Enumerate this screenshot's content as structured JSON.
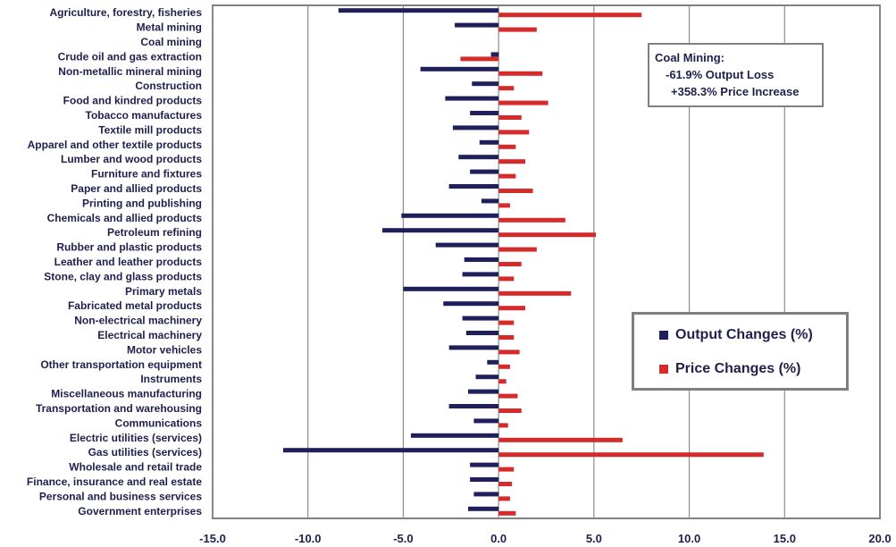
{
  "chart_data": {
    "type": "bar",
    "orientation": "horizontal",
    "categories": [
      "Agriculture, forestry, fisheries",
      "Metal mining",
      "Coal mining",
      "Crude oil and gas extraction",
      "Non-metallic mineral mining",
      "Construction",
      "Food and kindred products",
      "Tobacco manufactures",
      "Textile mill products",
      "Apparel and other textile products",
      "Lumber and wood products",
      "Furniture and fixtures",
      "Paper and allied products",
      "Printing and publishing",
      "Chemicals and allied products",
      "Petroleum refining",
      "Rubber and plastic products",
      "Leather and leather products",
      "Stone, clay and glass products",
      "Primary metals",
      "Fabricated metal products",
      "Non-electrical machinery",
      "Electrical machinery",
      "Motor vehicles",
      "Other transportation equipment",
      "Instruments",
      "Miscellaneous manufacturing",
      "Transportation and warehousing",
      "Communications",
      "Electric utilities (services)",
      "Gas utilities (services)",
      "Wholesale and retail trade",
      "Finance, insurance and real estate",
      "Personal and business services",
      "Government enterprises"
    ],
    "series": [
      {
        "name": "Output Changes (%)",
        "color": "#1f1f5c",
        "values": [
          -8.4,
          -2.3,
          null,
          -0.4,
          -4.1,
          -1.4,
          -2.8,
          -1.5,
          -2.4,
          -1.0,
          -2.1,
          -1.5,
          -2.6,
          -0.9,
          -5.1,
          -6.1,
          -3.3,
          -1.8,
          -1.9,
          -5.0,
          -2.9,
          -1.9,
          -1.7,
          -2.6,
          -0.6,
          -1.2,
          -1.6,
          -2.6,
          -1.3,
          -4.6,
          -11.3,
          -1.5,
          -1.5,
          -1.3,
          -1.6
        ]
      },
      {
        "name": "Price Changes (%)",
        "color": "#d62b2b",
        "values": [
          7.5,
          2.0,
          null,
          -2.0,
          2.3,
          0.8,
          2.6,
          1.2,
          1.6,
          0.9,
          1.4,
          0.9,
          1.8,
          0.6,
          3.5,
          5.1,
          2.0,
          1.2,
          0.8,
          3.8,
          1.4,
          0.8,
          0.8,
          1.1,
          0.6,
          0.4,
          1.0,
          1.2,
          0.5,
          6.5,
          13.9,
          0.8,
          0.7,
          0.6,
          0.9
        ]
      }
    ],
    "xlim": [
      -15,
      20
    ],
    "xticks": [
      "-15.0",
      "-10.0",
      "-5.0",
      "0.0",
      "5.0",
      "10.0",
      "15.0",
      "20.0"
    ],
    "grid": "vertical",
    "legend_position": "lower-right",
    "annotation": {
      "title": "Coal Mining:",
      "line1": "-61.9% Output Loss",
      "line2": "+358.3% Price Increase"
    }
  },
  "legend": {
    "output_label": "Output Changes (%)",
    "price_label": "Price Changes (%)"
  }
}
